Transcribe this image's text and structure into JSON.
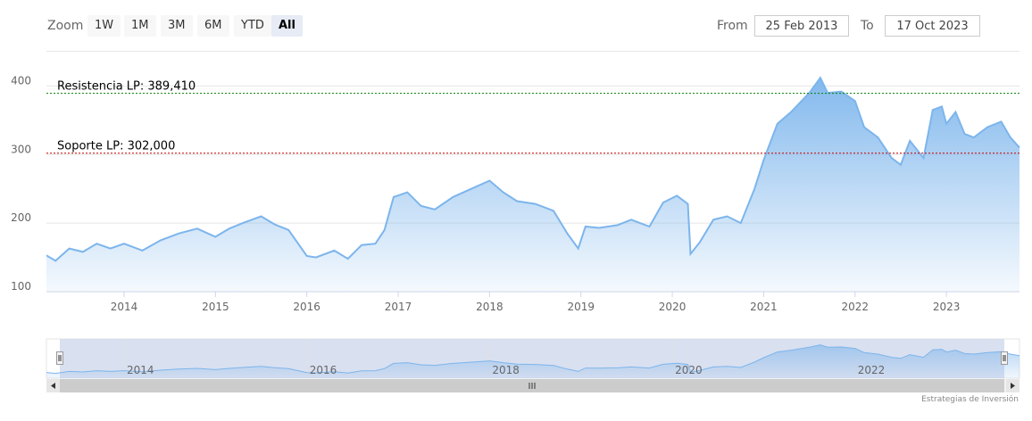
{
  "toolbar": {
    "zoom_label": "Zoom",
    "buttons": [
      "1W",
      "1M",
      "3M",
      "6M",
      "YTD",
      "All"
    ],
    "selected": "All",
    "from_label": "From",
    "from_value": "25 Feb 2013",
    "to_label": "To",
    "to_value": "17 Oct 2023"
  },
  "credit": "Estrategias de Inversión",
  "colors": {
    "line": "#7cb5ec",
    "resistance": "#008000",
    "support": "#cc0000",
    "navigator_mask": "#ccd6eb"
  },
  "chart_data": {
    "type": "area",
    "ylim": [
      100,
      450
    ],
    "yticks": [
      100,
      200,
      300,
      400
    ],
    "xlim": [
      2013.15,
      2023.8
    ],
    "xticks": [
      "2014",
      "2015",
      "2016",
      "2017",
      "2018",
      "2019",
      "2020",
      "2021",
      "2022",
      "2023"
    ],
    "navigator_ticks": [
      "2014",
      "2016",
      "2018",
      "2020",
      "2022"
    ],
    "plot_lines": [
      {
        "label": "Resistencia LP: 389,410",
        "value": 389.41,
        "color": "#008000"
      },
      {
        "label": "Soporte LP: 302,000",
        "value": 302.0,
        "color": "#cc0000"
      }
    ],
    "x": [
      2013.15,
      2013.25,
      2013.4,
      2013.55,
      2013.7,
      2013.85,
      2014.0,
      2014.2,
      2014.4,
      2014.6,
      2014.8,
      2015.0,
      2015.15,
      2015.3,
      2015.5,
      2015.65,
      2015.8,
      2016.0,
      2016.1,
      2016.3,
      2016.45,
      2016.6,
      2016.75,
      2016.85,
      2016.95,
      2017.1,
      2017.25,
      2017.4,
      2017.6,
      2017.8,
      2018.0,
      2018.15,
      2018.3,
      2018.5,
      2018.7,
      2018.85,
      2018.97,
      2019.05,
      2019.2,
      2019.4,
      2019.55,
      2019.75,
      2019.9,
      2020.05,
      2020.17,
      2020.2,
      2020.3,
      2020.45,
      2020.6,
      2020.75,
      2020.9,
      2021.0,
      2021.15,
      2021.3,
      2021.5,
      2021.62,
      2021.7,
      2021.85,
      2022.0,
      2022.1,
      2022.25,
      2022.4,
      2022.5,
      2022.6,
      2022.75,
      2022.85,
      2022.95,
      2023.0,
      2023.1,
      2023.2,
      2023.3,
      2023.45,
      2023.6,
      2023.7,
      2023.8
    ],
    "y": [
      153,
      145,
      163,
      158,
      170,
      163,
      170,
      160,
      175,
      185,
      192,
      180,
      192,
      200,
      210,
      198,
      190,
      152,
      150,
      160,
      148,
      168,
      170,
      190,
      238,
      245,
      225,
      220,
      238,
      250,
      262,
      245,
      232,
      228,
      218,
      185,
      163,
      195,
      193,
      197,
      205,
      195,
      230,
      240,
      228,
      155,
      172,
      205,
      210,
      200,
      250,
      292,
      345,
      362,
      390,
      412,
      390,
      392,
      378,
      340,
      325,
      295,
      285,
      320,
      295,
      365,
      370,
      345,
      362,
      330,
      325,
      340,
      348,
      325,
      310
    ]
  }
}
